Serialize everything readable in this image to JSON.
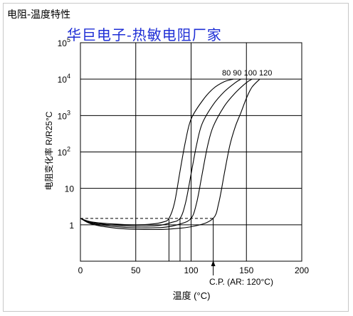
{
  "header": {
    "title": "电阻-温度特性",
    "watermark": "华巨电子-热敏电阻厂家"
  },
  "chart_data": {
    "type": "line",
    "title": "电阻-温度特性",
    "xlabel": "温度 (°C)",
    "ylabel": "电阻变化率 R/R25°C",
    "xlim": [
      0,
      200
    ],
    "ylim": [
      0.1,
      100000
    ],
    "yscale": "log",
    "grid": true,
    "x_ticks": [
      0,
      50,
      100,
      150,
      200
    ],
    "y_ticks": [
      {
        "value": 1,
        "label": "1"
      },
      {
        "value": 10,
        "label": "10"
      },
      {
        "value": 100,
        "label": "10",
        "exp": "2"
      },
      {
        "value": 1000,
        "label": "10",
        "exp": "3"
      },
      {
        "value": 10000,
        "label": "10",
        "exp": "4"
      },
      {
        "value": 100000,
        "label": "10",
        "exp": "5"
      }
    ],
    "series": [
      {
        "name": "80",
        "x": [
          0,
          10,
          30,
          50,
          65,
          75,
          80,
          85,
          90,
          95,
          100,
          110,
          120,
          130,
          138
        ],
        "y": [
          1.5,
          1.2,
          1.05,
          1.0,
          1.05,
          1.2,
          1.5,
          4,
          30,
          200,
          800,
          2500,
          5500,
          8500,
          10000
        ]
      },
      {
        "name": "90",
        "x": [
          0,
          10,
          30,
          50,
          70,
          82,
          90,
          95,
          100,
          105,
          110,
          120,
          130,
          140,
          145
        ],
        "y": [
          1.5,
          1.15,
          0.98,
          0.92,
          0.95,
          1.15,
          1.5,
          4,
          25,
          160,
          600,
          2000,
          4500,
          8000,
          10000
        ]
      },
      {
        "name": "100",
        "x": [
          0,
          10,
          30,
          50,
          75,
          90,
          100,
          105,
          110,
          115,
          120,
          130,
          140,
          150,
          155
        ],
        "y": [
          1.5,
          1.1,
          0.9,
          0.83,
          0.85,
          1.05,
          1.5,
          4,
          25,
          150,
          500,
          1800,
          4200,
          8000,
          10000
        ]
      },
      {
        "name": "120",
        "x": [
          0,
          10,
          30,
          50,
          80,
          105,
          120,
          125,
          130,
          135,
          140,
          145,
          150,
          155,
          162
        ],
        "y": [
          1.5,
          1.05,
          0.82,
          0.75,
          0.76,
          0.95,
          1.5,
          4,
          25,
          150,
          500,
          1200,
          3000,
          6000,
          10000
        ]
      }
    ],
    "series_labels": "80 90 100 120",
    "reference_lines": {
      "y": 1.5,
      "x": [
        80,
        90,
        100,
        120
      ]
    },
    "annotation": "C.P. (AR: 120°C)",
    "annotation_x": 120
  },
  "colors": {
    "line": "#000000",
    "grid": "#000000",
    "watermark": "#1f2fd6"
  }
}
